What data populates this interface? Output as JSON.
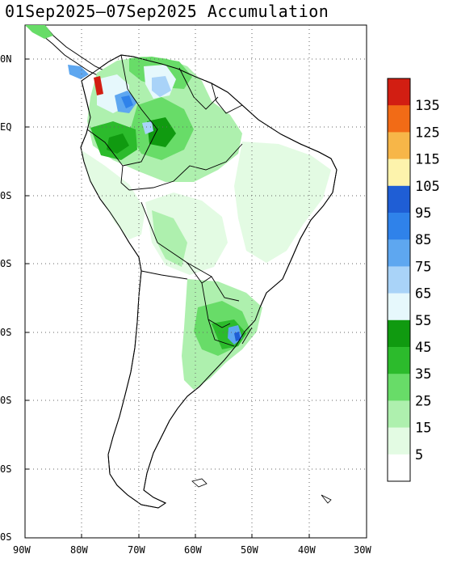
{
  "title": "01Sep2025–07Sep2025 Accumulation",
  "map": {
    "region": "South America",
    "variable": "precipitation accumulation",
    "lat_labels": [
      "0N",
      "EQ",
      "0S",
      "0S",
      "0S",
      "0S",
      "0S",
      "0S"
    ],
    "lon_labels": [
      "90W",
      "80W",
      "70W",
      "60W",
      "50W",
      "40W",
      "30W"
    ]
  },
  "colorbar": {
    "labels": [
      "135",
      "125",
      "115",
      "105",
      "95",
      "85",
      "75",
      "65",
      "55",
      "45",
      "35",
      "25",
      "15",
      "5"
    ],
    "colors": [
      "#d21e12",
      "#f26b16",
      "#f7b648",
      "#fdf3ac",
      "#1f5ed5",
      "#2f82ea",
      "#5ea7f0",
      "#a9d3f8",
      "#e6f8fc",
      "#109a10",
      "#2cbb2c",
      "#68dc68",
      "#aef0ae",
      "#e3fbe3",
      "#ffffff"
    ]
  }
}
